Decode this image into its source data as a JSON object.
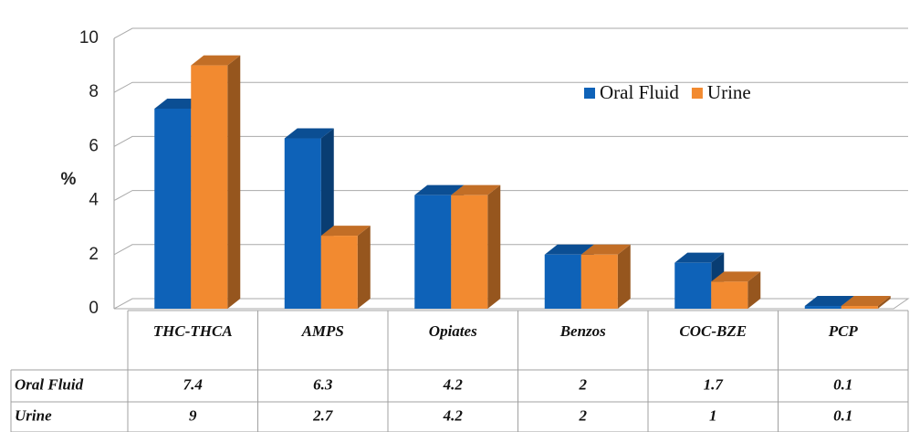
{
  "chart_data": {
    "type": "bar",
    "y_label": "%",
    "categories": [
      "THC-THCA",
      "AMPS",
      "Opiates",
      "Benzos",
      "COC-BZE",
      "PCP"
    ],
    "series": [
      {
        "name": "Oral Fluid",
        "color": "#0e62b8",
        "values": [
          7.4,
          6.3,
          4.2,
          2,
          1.7,
          0.1
        ]
      },
      {
        "name": "Urine",
        "color": "#f28a30",
        "values": [
          9,
          2.7,
          4.2,
          2,
          1,
          0.1
        ]
      }
    ],
    "ylim": [
      0,
      10
    ],
    "yticks": [
      0,
      2,
      4,
      6,
      8,
      10
    ],
    "grid": true,
    "legend": "top-right",
    "data_table": true
  }
}
